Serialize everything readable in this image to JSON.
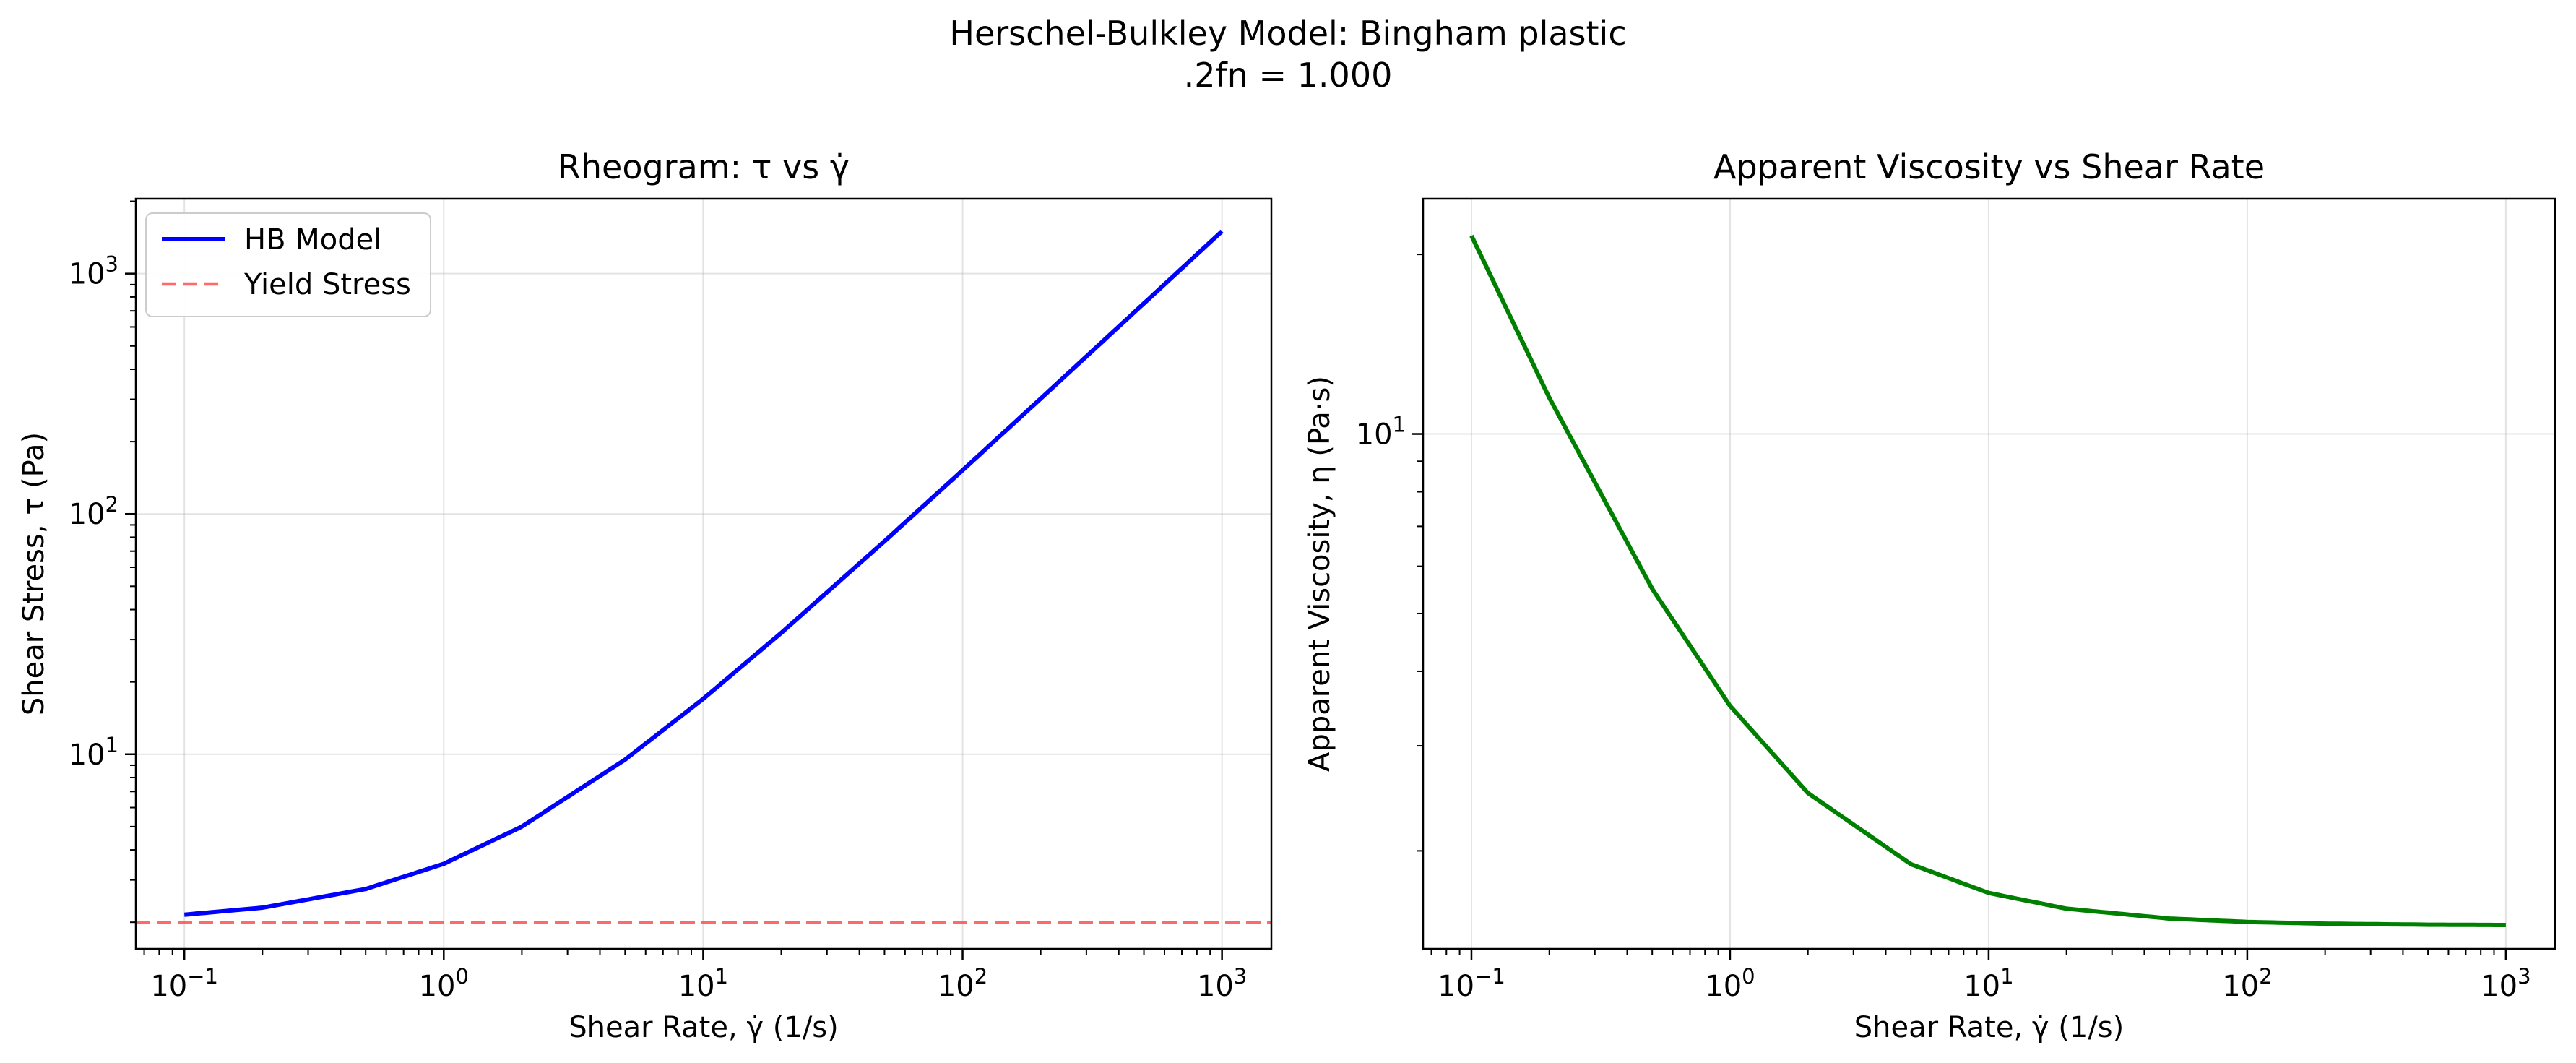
{
  "figure": {
    "title_line1": "Herschel-Bulkley Model: Bingham plastic",
    "title_line2": ".2fn = 1.000"
  },
  "chart_data": [
    {
      "type": "line",
      "title": "Rheogram: τ vs γ̇",
      "xlabel": "Shear Rate, γ̇ (1/s)",
      "ylabel": "Shear Stress, τ (Pa)",
      "xscale": "log",
      "yscale": "log",
      "xlim": [
        0.065,
        1550
      ],
      "ylim": [
        1.55,
        2050
      ],
      "xticks": [
        0.1,
        1,
        10,
        100,
        1000
      ],
      "xtick_labels": [
        {
          "base": "10",
          "exp": "−1"
        },
        {
          "base": "10",
          "exp": "0"
        },
        {
          "base": "10",
          "exp": "1"
        },
        {
          "base": "10",
          "exp": "2"
        },
        {
          "base": "10",
          "exp": "3"
        }
      ],
      "yticks": [
        10,
        100,
        1000
      ],
      "ytick_labels": [
        {
          "base": "10",
          "exp": "1"
        },
        {
          "base": "10",
          "exp": "2"
        },
        {
          "base": "10",
          "exp": "3"
        }
      ],
      "grid": true,
      "legend": "upper-left",
      "series": [
        {
          "name": "HB Model",
          "color": "#0000ff",
          "style": "solid",
          "x": [
            0.1,
            0.2,
            0.5,
            1,
            2,
            5,
            10,
            20,
            50,
            100,
            200,
            500,
            1000
          ],
          "y": [
            2.15,
            2.3,
            2.75,
            3.5,
            5.0,
            9.5,
            17.0,
            32.0,
            77.0,
            152.0,
            302.0,
            752.0,
            1502.0
          ]
        },
        {
          "name": "Yield Stress",
          "color": "#ff4444",
          "style": "dashed",
          "y_const": 2.0
        }
      ]
    },
    {
      "type": "line",
      "title": "Apparent Viscosity vs Shear Rate",
      "xlabel": "Shear Rate, γ̇ (1/s)",
      "ylabel": "Apparent Viscosity, η (Pa·s)",
      "xscale": "log",
      "yscale": "log",
      "xlim": [
        0.065,
        1550
      ],
      "ylim": [
        1.37,
        24.8
      ],
      "xticks": [
        0.1,
        1,
        10,
        100,
        1000
      ],
      "xtick_labels": [
        {
          "base": "10",
          "exp": "−1"
        },
        {
          "base": "10",
          "exp": "0"
        },
        {
          "base": "10",
          "exp": "1"
        },
        {
          "base": "10",
          "exp": "2"
        },
        {
          "base": "10",
          "exp": "3"
        }
      ],
      "yticks": [
        10
      ],
      "ytick_labels": [
        {
          "base": "10",
          "exp": "1"
        }
      ],
      "grid": true,
      "series": [
        {
          "color": "#008000",
          "style": "solid",
          "x": [
            0.1,
            0.2,
            0.5,
            1,
            2,
            5,
            10,
            20,
            50,
            100,
            200,
            500,
            1000
          ],
          "y": [
            21.5,
            11.5,
            5.5,
            3.5,
            2.5,
            1.9,
            1.7,
            1.6,
            1.54,
            1.52,
            1.51,
            1.504,
            1.502
          ]
        }
      ]
    }
  ]
}
